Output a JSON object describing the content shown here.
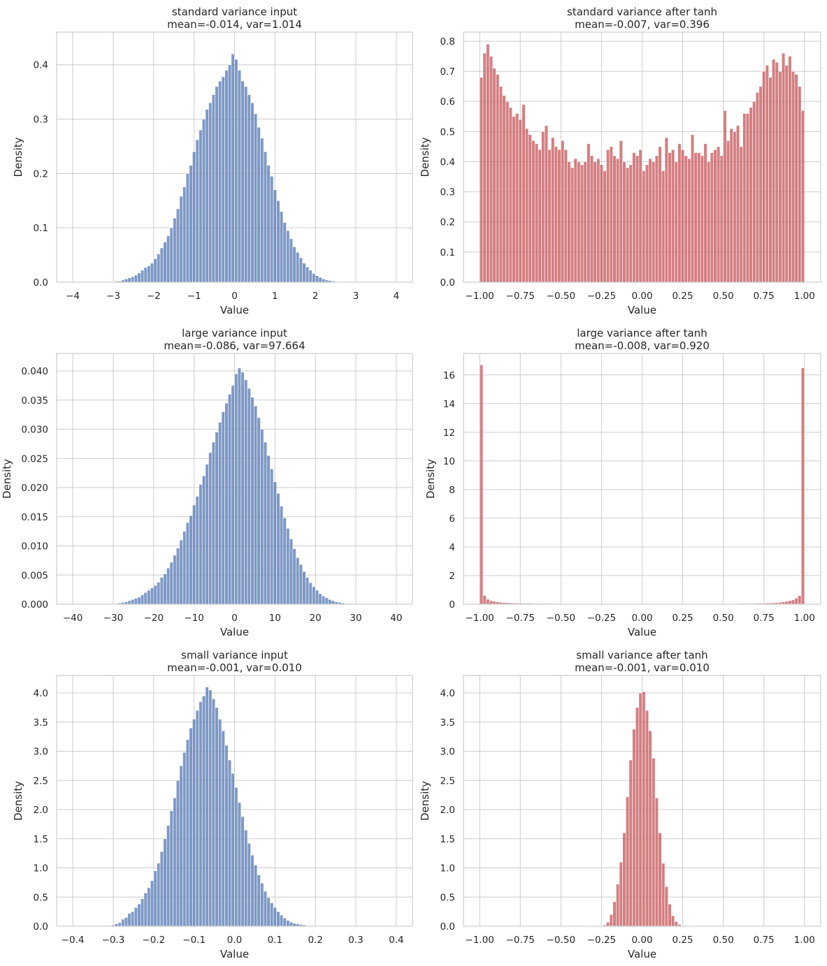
{
  "chart_data": [
    {
      "type": "bar",
      "subtype": "histogram",
      "title": "standard variance input",
      "subtitle": "mean=-0.014, var=1.014",
      "xlabel": "Value",
      "ylabel": "Density",
      "color": "#4c72b0",
      "xlim": [
        -4.4,
        4.4
      ],
      "ylim": [
        0,
        0.46
      ],
      "xticks": [
        -4,
        -3,
        -2,
        -1,
        0,
        1,
        2,
        3,
        4
      ],
      "xtick_labels": [
        "−4",
        "−3",
        "−2",
        "−1",
        "0",
        "1",
        "2",
        "3",
        "4"
      ],
      "yticks": [
        0,
        0.1,
        0.2,
        0.3,
        0.4
      ],
      "ytick_labels": [
        "0.0",
        "0.1",
        "0.2",
        "0.3",
        "0.4"
      ],
      "bin_range": [
        -4.0,
        4.0
      ],
      "values": [
        0,
        0,
        0,
        0,
        0,
        0,
        0,
        0,
        0,
        0,
        0.001,
        0.001,
        0.001,
        0.002,
        0.002,
        0.004,
        0.006,
        0.008,
        0.01,
        0.013,
        0.017,
        0.022,
        0.027,
        0.03,
        0.035,
        0.043,
        0.052,
        0.063,
        0.074,
        0.085,
        0.1,
        0.118,
        0.135,
        0.158,
        0.175,
        0.2,
        0.215,
        0.24,
        0.262,
        0.28,
        0.3,
        0.318,
        0.33,
        0.345,
        0.36,
        0.37,
        0.378,
        0.39,
        0.4,
        0.42,
        0.41,
        0.39,
        0.37,
        0.36,
        0.345,
        0.33,
        0.31,
        0.285,
        0.265,
        0.24,
        0.215,
        0.195,
        0.17,
        0.15,
        0.13,
        0.11,
        0.095,
        0.08,
        0.065,
        0.055,
        0.045,
        0.035,
        0.028,
        0.022,
        0.016,
        0.012,
        0.009,
        0.006,
        0.004,
        0.003,
        0.002,
        0.001,
        0.001,
        0,
        0,
        0,
        0,
        0,
        0,
        0,
        0,
        0,
        0,
        0,
        0,
        0,
        0,
        0,
        0,
        0
      ]
    },
    {
      "type": "bar",
      "subtype": "histogram",
      "title": "standard variance after tanh",
      "subtitle": "mean=-0.007, var=0.396",
      "xlabel": "Value",
      "ylabel": "Density",
      "color": "#c44e52",
      "xlim": [
        -1.1,
        1.1
      ],
      "ylim": [
        0,
        0.83
      ],
      "xticks": [
        -1,
        -0.75,
        -0.5,
        -0.25,
        0,
        0.25,
        0.5,
        0.75,
        1
      ],
      "xtick_labels": [
        "−1.00",
        "−0.75",
        "−0.50",
        "−0.25",
        "0.00",
        "0.25",
        "0.50",
        "0.75",
        "1.00"
      ],
      "yticks": [
        0,
        0.1,
        0.2,
        0.3,
        0.4,
        0.5,
        0.6,
        0.7,
        0.8
      ],
      "ytick_labels": [
        "0.0",
        "0.1",
        "0.2",
        "0.3",
        "0.4",
        "0.5",
        "0.6",
        "0.7",
        "0.8"
      ],
      "bin_range": [
        -1.0,
        1.0
      ],
      "values": [
        0.68,
        0.76,
        0.79,
        0.75,
        0.71,
        0.69,
        0.65,
        0.62,
        0.6,
        0.58,
        0.55,
        0.56,
        0.54,
        0.59,
        0.51,
        0.49,
        0.47,
        0.46,
        0.44,
        0.5,
        0.52,
        0.44,
        0.48,
        0.45,
        0.44,
        0.47,
        0.44,
        0.4,
        0.38,
        0.41,
        0.4,
        0.39,
        0.4,
        0.46,
        0.42,
        0.4,
        0.41,
        0.39,
        0.37,
        0.44,
        0.45,
        0.42,
        0.41,
        0.47,
        0.4,
        0.38,
        0.39,
        0.43,
        0.42,
        0.44,
        0.37,
        0.39,
        0.41,
        0.4,
        0.42,
        0.45,
        0.37,
        0.48,
        0.43,
        0.44,
        0.4,
        0.46,
        0.44,
        0.42,
        0.41,
        0.49,
        0.43,
        0.43,
        0.42,
        0.46,
        0.4,
        0.43,
        0.44,
        0.45,
        0.42,
        0.57,
        0.47,
        0.51,
        0.5,
        0.52,
        0.45,
        0.56,
        0.56,
        0.58,
        0.6,
        0.63,
        0.65,
        0.7,
        0.72,
        0.68,
        0.74,
        0.73,
        0.7,
        0.76,
        0.72,
        0.75,
        0.7,
        0.69,
        0.65,
        0.57
      ]
    },
    {
      "type": "bar",
      "subtype": "histogram",
      "title": "large variance input",
      "subtitle": "mean=-0.086, var=97.664",
      "xlabel": "Value",
      "ylabel": "Density",
      "color": "#4c72b0",
      "xlim": [
        -44,
        44
      ],
      "ylim": [
        0,
        0.043
      ],
      "xticks": [
        -40,
        -30,
        -20,
        -10,
        0,
        10,
        20,
        30,
        40
      ],
      "xtick_labels": [
        "−40",
        "−30",
        "−20",
        "−10",
        "0",
        "10",
        "20",
        "30",
        "40"
      ],
      "yticks": [
        0,
        0.005,
        0.01,
        0.015,
        0.02,
        0.025,
        0.03,
        0.035,
        0.04
      ],
      "ytick_labels": [
        "0.000",
        "0.005",
        "0.010",
        "0.015",
        "0.020",
        "0.025",
        "0.030",
        "0.035",
        "0.040"
      ],
      "bin_range": [
        -40,
        40
      ],
      "values": [
        0,
        0,
        0,
        0,
        0,
        0,
        0,
        0,
        0,
        0,
        0,
        0,
        0.0001,
        0.0001,
        0.0002,
        0.0003,
        0.0004,
        0.0006,
        0.0008,
        0.001,
        0.0012,
        0.0016,
        0.002,
        0.0024,
        0.0028,
        0.0032,
        0.0038,
        0.0046,
        0.0052,
        0.0062,
        0.0072,
        0.0084,
        0.0096,
        0.011,
        0.0125,
        0.014,
        0.0152,
        0.017,
        0.0185,
        0.0205,
        0.022,
        0.024,
        0.026,
        0.0278,
        0.0295,
        0.0312,
        0.033,
        0.0345,
        0.036,
        0.0375,
        0.0395,
        0.0405,
        0.0398,
        0.0385,
        0.037,
        0.0355,
        0.034,
        0.032,
        0.03,
        0.0278,
        0.0255,
        0.0232,
        0.021,
        0.019,
        0.0168,
        0.0148,
        0.013,
        0.0112,
        0.0095,
        0.008,
        0.0068,
        0.0056,
        0.0046,
        0.0037,
        0.003,
        0.0024,
        0.0018,
        0.0014,
        0.0011,
        0.0008,
        0.0006,
        0.0004,
        0.0003,
        0.0002,
        0.0001,
        0.0001,
        0,
        0,
        0,
        0,
        0,
        0,
        0,
        0,
        0,
        0,
        0,
        0,
        0,
        0
      ]
    },
    {
      "type": "bar",
      "subtype": "histogram",
      "title": "large variance after tanh",
      "subtitle": "mean=-0.008, var=0.920",
      "xlabel": "Value",
      "ylabel": "Density",
      "color": "#c44e52",
      "xlim": [
        -1.1,
        1.1
      ],
      "ylim": [
        0,
        17.5
      ],
      "xticks": [
        -1,
        -0.75,
        -0.5,
        -0.25,
        0,
        0.25,
        0.5,
        0.75,
        1
      ],
      "xtick_labels": [
        "−1.00",
        "−0.75",
        "−0.50",
        "−0.25",
        "0.00",
        "0.25",
        "0.50",
        "0.75",
        "1.00"
      ],
      "yticks": [
        0,
        2,
        4,
        6,
        8,
        10,
        12,
        14,
        16
      ],
      "ytick_labels": [
        "0",
        "2",
        "4",
        "6",
        "8",
        "10",
        "12",
        "14",
        "16"
      ],
      "bin_range": [
        -1.0,
        1.0
      ],
      "values": [
        16.7,
        0.6,
        0.35,
        0.25,
        0.2,
        0.17,
        0.13,
        0.11,
        0.1,
        0.09,
        0.08,
        0.07,
        0.07,
        0.06,
        0.06,
        0.06,
        0.05,
        0.05,
        0.05,
        0.05,
        0.05,
        0.05,
        0.04,
        0.04,
        0.04,
        0.04,
        0.04,
        0.04,
        0.04,
        0.04,
        0.04,
        0.04,
        0.04,
        0.04,
        0.04,
        0.04,
        0.04,
        0.04,
        0.04,
        0.04,
        0.04,
        0.04,
        0.04,
        0.04,
        0.04,
        0.04,
        0.04,
        0.04,
        0.04,
        0.04,
        0.04,
        0.04,
        0.04,
        0.04,
        0.04,
        0.04,
        0.04,
        0.04,
        0.04,
        0.04,
        0.04,
        0.04,
        0.04,
        0.04,
        0.04,
        0.04,
        0.04,
        0.04,
        0.04,
        0.04,
        0.04,
        0.04,
        0.04,
        0.04,
        0.04,
        0.04,
        0.04,
        0.04,
        0.04,
        0.04,
        0.05,
        0.05,
        0.05,
        0.05,
        0.05,
        0.06,
        0.06,
        0.07,
        0.08,
        0.09,
        0.1,
        0.11,
        0.13,
        0.17,
        0.2,
        0.25,
        0.3,
        0.42,
        0.6,
        16.5
      ]
    },
    {
      "type": "bar",
      "subtype": "histogram",
      "title": "small variance input",
      "subtitle": "mean=-0.001, var=0.010",
      "xlabel": "Value",
      "ylabel": "Density",
      "color": "#4c72b0",
      "xlim": [
        -0.44,
        0.44
      ],
      "ylim": [
        0,
        4.3
      ],
      "xticks": [
        -0.4,
        -0.3,
        -0.2,
        -0.1,
        0,
        0.1,
        0.2,
        0.3,
        0.4
      ],
      "xtick_labels": [
        "−0.4",
        "−0.3",
        "−0.2",
        "−0.1",
        "0.0",
        "0.1",
        "0.2",
        "0.3",
        "0.4"
      ],
      "yticks": [
        0,
        0.5,
        1,
        1.5,
        2,
        2.5,
        3,
        3.5,
        4
      ],
      "ytick_labels": [
        "0.0",
        "0.5",
        "1.0",
        "1.5",
        "2.0",
        "2.5",
        "3.0",
        "3.5",
        "4.0"
      ],
      "bin_range": [
        -0.4,
        0.4
      ],
      "values": [
        0,
        0,
        0,
        0,
        0,
        0,
        0,
        0,
        0,
        0,
        0,
        0.01,
        0.02,
        0.04,
        0.06,
        0.12,
        0.15,
        0.22,
        0.25,
        0.32,
        0.38,
        0.47,
        0.57,
        0.66,
        0.78,
        0.95,
        1.08,
        1.28,
        1.5,
        1.73,
        1.98,
        2.2,
        2.5,
        2.75,
        2.98,
        3.2,
        3.4,
        3.55,
        3.7,
        3.85,
        3.95,
        4.1,
        4.05,
        3.9,
        3.75,
        3.55,
        3.35,
        3.1,
        2.85,
        2.62,
        2.38,
        2.12,
        1.88,
        1.65,
        1.42,
        1.22,
        1.05,
        0.88,
        0.74,
        0.6,
        0.49,
        0.4,
        0.32,
        0.25,
        0.19,
        0.14,
        0.1,
        0.07,
        0.05,
        0.04,
        0.03,
        0.02,
        0.01,
        0,
        0,
        0,
        0,
        0,
        0,
        0,
        0,
        0,
        0,
        0,
        0,
        0,
        0,
        0,
        0,
        0,
        0,
        0,
        0,
        0,
        0,
        0,
        0,
        0,
        0,
        0
      ]
    },
    {
      "type": "bar",
      "subtype": "histogram",
      "title": "small variance after tanh",
      "subtitle": "mean=-0.001, var=0.010",
      "xlabel": "Value",
      "ylabel": "Density",
      "color": "#c44e52",
      "xlim": [
        -1.1,
        1.1
      ],
      "ylim": [
        0,
        4.3
      ],
      "xticks": [
        -1,
        -0.75,
        -0.5,
        -0.25,
        0,
        0.25,
        0.5,
        0.75,
        1
      ],
      "xtick_labels": [
        "−1.00",
        "−0.75",
        "−0.50",
        "−0.25",
        "0.00",
        "0.25",
        "0.50",
        "0.75",
        "1.00"
      ],
      "yticks": [
        0,
        0.5,
        1,
        1.5,
        2,
        2.5,
        3,
        3.5,
        4
      ],
      "ytick_labels": [
        "0.0",
        "0.5",
        "1.0",
        "1.5",
        "2.0",
        "2.5",
        "3.0",
        "3.5",
        "4.0"
      ],
      "bin_range": [
        -1.0,
        1.0
      ],
      "values": [
        0,
        0,
        0,
        0,
        0,
        0,
        0,
        0,
        0,
        0,
        0,
        0,
        0,
        0,
        0,
        0,
        0,
        0,
        0,
        0,
        0,
        0,
        0,
        0,
        0,
        0,
        0,
        0,
        0,
        0,
        0,
        0,
        0,
        0,
        0,
        0,
        0,
        0.01,
        0.02,
        0.07,
        0.2,
        0.42,
        0.72,
        1.1,
        1.6,
        2.22,
        2.85,
        3.38,
        3.75,
        4.0,
        4.02,
        3.7,
        3.35,
        2.88,
        2.2,
        1.6,
        1.08,
        0.68,
        0.38,
        0.18,
        0.08,
        0.03,
        0.01,
        0,
        0,
        0,
        0,
        0,
        0,
        0,
        0,
        0,
        0,
        0,
        0,
        0,
        0,
        0,
        0,
        0,
        0,
        0,
        0,
        0,
        0,
        0,
        0,
        0,
        0,
        0,
        0,
        0,
        0,
        0,
        0,
        0,
        0,
        0,
        0,
        0
      ]
    }
  ]
}
